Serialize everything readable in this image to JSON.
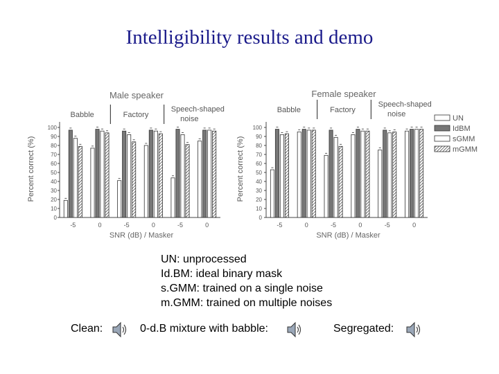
{
  "title": "Intelligibility results and demo",
  "chart_data": {
    "type": "bar",
    "ylabel": "Percent correct (%)",
    "xlabel": "SNR (dB) / Masker",
    "ylim": [
      0,
      100
    ],
    "yticks": [
      0,
      10,
      20,
      30,
      40,
      50,
      60,
      70,
      80,
      90,
      100
    ],
    "categories": [
      "-5",
      "0",
      "-5",
      "0",
      "-5",
      "0"
    ],
    "maskers": [
      "Babble",
      "Factory",
      "Speech-shaped noise"
    ],
    "legend": [
      "UN",
      "IdBM",
      "sGMM",
      "mGMM"
    ],
    "panels": [
      {
        "title": "Male speaker",
        "series": [
          {
            "name": "UN",
            "values": [
              19,
              77,
              41,
              80,
              44,
              85
            ]
          },
          {
            "name": "IdBM",
            "values": [
              97,
              98,
              96,
              97,
              98,
              97
            ]
          },
          {
            "name": "sGMM",
            "values": [
              88,
              96,
              92,
              96,
              92,
              97
            ]
          },
          {
            "name": "mGMM",
            "values": [
              79,
              94,
              84,
              93,
              81,
              96
            ]
          }
        ]
      },
      {
        "title": "Female speaker",
        "series": [
          {
            "name": "UN",
            "values": [
              53,
              95,
              69,
              92,
              75,
              96
            ]
          },
          {
            "name": "IdBM",
            "values": [
              98,
              98,
              97,
              98,
              97,
              98
            ]
          },
          {
            "name": "sGMM",
            "values": [
              92,
              97,
              89,
              96,
              94,
              98
            ]
          },
          {
            "name": "mGMM",
            "values": [
              93,
              97,
              79,
              96,
              95,
              98
            ]
          }
        ]
      }
    ]
  },
  "abbreviations": [
    "UN: unprocessed",
    "Id.BM: ideal binary mask",
    "s.GMM: trained on a single noise",
    "m.GMM: trained on multiple noises"
  ],
  "audio": {
    "clean": "Clean:",
    "mixture": "0-d.B mixture with babble:",
    "segregated": "Segregated:",
    "icon": "speaker-icon"
  }
}
